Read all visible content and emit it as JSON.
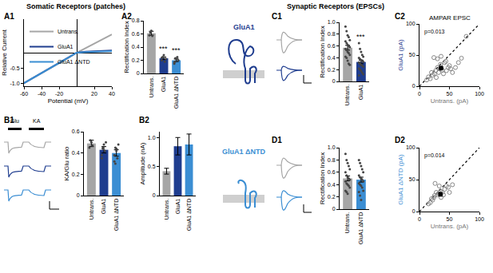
{
  "headers": [
    "Somatic Receptors (patches)",
    "Synaptic Receptors (EPSCs)"
  ],
  "constructs": [
    {
      "name": "GluA1",
      "color": "#1f3d8f"
    },
    {
      "name": "GluA1 ΔNTD",
      "color": "#3b8ed3"
    }
  ],
  "trace_labels": [
    "Glu",
    "KA"
  ],
  "chart_data": [
    {
      "panel": "A1",
      "type": "line",
      "xlabel": "Potential (mV)",
      "ylabel": "Relative Current",
      "x": [
        -60,
        -50,
        -40,
        -30,
        -20,
        -10,
        0,
        10,
        20,
        30,
        40
      ],
      "series": [
        {
          "name": "Untrans.",
          "color": "#a6a6a6",
          "values": [
            -1.0,
            -0.84,
            -0.68,
            -0.52,
            -0.36,
            -0.18,
            0,
            0.15,
            0.3,
            0.45,
            0.6
          ]
        },
        {
          "name": "GluA1",
          "color": "#1f3d8f",
          "values": [
            -1.0,
            -0.83,
            -0.66,
            -0.49,
            -0.32,
            -0.15,
            0,
            0.03,
            0.04,
            0.05,
            0.07
          ]
        },
        {
          "name": "GluA1 ΔNTD",
          "color": "#3b8ed3",
          "values": [
            -1.0,
            -0.84,
            -0.68,
            -0.51,
            -0.34,
            -0.17,
            0,
            0.02,
            0.03,
            0.04,
            0.05
          ]
        }
      ],
      "xlim": [
        -60,
        40
      ],
      "xticks": [
        -60,
        -40,
        -20,
        20,
        40
      ],
      "ylim": [
        -1.1,
        1.1
      ],
      "yticks": [
        {
          "value": -1,
          "label": "-1.0"
        },
        -0.5
      ],
      "legend": "upper left"
    },
    {
      "panel": "A2",
      "type": "bar",
      "ylabel": "Rectification Index",
      "categories": [
        "Untrans.",
        "GluA1",
        "GluA1 ΔNTD"
      ],
      "values": [
        0.61,
        0.23,
        0.2
      ],
      "errors": [
        0.03,
        0.02,
        0.02
      ],
      "colors": [
        "#a6a6a6",
        "#1f3d8f",
        "#3b8ed3"
      ],
      "points": [
        [
          0.58,
          0.62,
          0.65,
          0.57
        ],
        [
          0.2,
          0.25,
          0.28,
          0.18,
          0.22,
          0.24
        ],
        [
          0.15,
          0.18,
          0.22,
          0.25,
          0.2,
          0.17,
          0.23
        ]
      ],
      "ylim": [
        0,
        0.8
      ],
      "yticks": [
        0,
        0.2,
        0.4,
        0.6,
        0.8
      ],
      "annotations": [
        {
          "category": "GluA1",
          "text": "***"
        },
        {
          "category": "GluA1 ΔNTD",
          "text": "***"
        }
      ]
    },
    {
      "panel": "B1",
      "type": "bar",
      "ylabel": "KA/Glu ratio",
      "categories": [
        "Untrans.",
        "GluA1",
        "GluA1 ΔNTD"
      ],
      "values": [
        0.49,
        0.43,
        0.4
      ],
      "errors": [
        0.03,
        0.03,
        0.03
      ],
      "colors": [
        "#a6a6a6",
        "#1f3d8f",
        "#3b8ed3"
      ],
      "points": [
        [
          0.45,
          0.52,
          0.5,
          0.47
        ],
        [
          0.35,
          0.45,
          0.48,
          0.42,
          0.5,
          0.38,
          0.44
        ],
        [
          0.32,
          0.45,
          0.42,
          0.35,
          0.48,
          0.38,
          0.3,
          0.44
        ]
      ],
      "ylim": [
        0,
        0.6
      ],
      "yticks": [
        0,
        0.2,
        0.4,
        0.6
      ]
    },
    {
      "panel": "B2",
      "type": "bar",
      "ylabel": "Amplitude (nA)",
      "categories": [
        "Untrans.",
        "GluA1",
        "GluA1 ΔNTD"
      ],
      "values": [
        0.42,
        0.85,
        0.88
      ],
      "errors": [
        0.05,
        0.15,
        0.18
      ],
      "colors": [
        "#a6a6a6",
        "#1f3d8f",
        "#3b8ed3"
      ],
      "ylim": [
        0,
        1.1
      ],
      "yticks": [
        0,
        0.5,
        {
          "value": 1,
          "label": "1.0"
        }
      ]
    },
    {
      "panel": "C1",
      "type": "bar",
      "ylabel": "Rectification Index",
      "categories": [
        "Untrans.",
        "GluA1"
      ],
      "values": [
        0.57,
        0.33
      ],
      "errors": [
        0.04,
        0.03
      ],
      "colors": [
        "#a6a6a6",
        "#1f3d8f"
      ],
      "points": [
        [
          0.93,
          0.85,
          0.78,
          0.75,
          0.7,
          0.68,
          0.65,
          0.62,
          0.6,
          0.58,
          0.55,
          0.53,
          0.5,
          0.48,
          0.45,
          0.42,
          0.4,
          0.35,
          0.3,
          0.28
        ],
        [
          0.65,
          0.55,
          0.5,
          0.45,
          0.42,
          0.4,
          0.38,
          0.36,
          0.35,
          0.33,
          0.32,
          0.3,
          0.28,
          0.27,
          0.25,
          0.22,
          0.2,
          0.18,
          0.15,
          0.12,
          0.1,
          0.3
        ]
      ],
      "ylim": [
        0,
        1.0
      ],
      "yticks": [
        0,
        0.2,
        0.4,
        0.6,
        0.8,
        {
          "value": 1,
          "label": "1.0"
        }
      ],
      "annotations": [
        {
          "category": "GluA1",
          "text": "***"
        }
      ]
    },
    {
      "panel": "C2",
      "type": "scatter",
      "title": "AMPAR EPSC",
      "xlabel": "Untrans. (pA)",
      "ylabel": "GluA1 (pA)",
      "color": "#1f3d8f",
      "x": [
        12,
        15,
        18,
        20,
        22,
        24,
        25,
        27,
        28,
        30,
        30,
        32,
        34,
        35,
        36,
        38,
        40,
        42,
        44,
        45,
        48,
        50,
        52,
        55,
        60,
        65,
        70,
        78
      ],
      "y": [
        10,
        15,
        12,
        22,
        18,
        46,
        20,
        25,
        14,
        30,
        44,
        22,
        28,
        35,
        48,
        26,
        20,
        38,
        40,
        25,
        30,
        33,
        28,
        22,
        30,
        38,
        45,
        80
      ],
      "mean": {
        "x": 36,
        "y": 29,
        "x_error": 3,
        "y_error": 3
      },
      "xlim": [
        0,
        100
      ],
      "xticks": [
        0,
        50,
        100
      ],
      "ylim": [
        0,
        100
      ],
      "yticks": [
        0,
        50,
        100
      ],
      "line_style": "dotted",
      "annotations": [
        {
          "text": "p=0.013"
        }
      ]
    },
    {
      "panel": "D1",
      "type": "bar",
      "ylabel": "Rectification Index",
      "categories": [
        "Untrans.",
        "GluA1 ΔNTD"
      ],
      "values": [
        0.5,
        0.48
      ],
      "errors": [
        0.04,
        0.04
      ],
      "colors": [
        "#a6a6a6",
        "#3b8ed3"
      ],
      "points": [
        [
          0.9,
          0.8,
          0.75,
          0.7,
          0.65,
          0.6,
          0.55,
          0.52,
          0.5,
          0.48,
          0.45,
          0.42,
          0.4,
          0.38,
          0.35,
          0.3,
          0.28,
          0.25
        ],
        [
          0.8,
          0.75,
          0.7,
          0.65,
          0.6,
          0.55,
          0.52,
          0.5,
          0.48,
          0.45,
          0.42,
          0.4,
          0.38,
          0.35,
          0.3,
          0.28,
          0.22,
          0.15
        ]
      ],
      "ylim": [
        0,
        1.0
      ],
      "yticks": [
        0,
        0.2,
        0.4,
        0.6,
        0.8,
        {
          "value": 1,
          "label": "1.0"
        }
      ]
    },
    {
      "panel": "D2",
      "type": "scatter",
      "xlabel": "Untrans. (pA)",
      "ylabel": "GluA1 ΔNTD (pA)",
      "color": "#3b8ed3",
      "x": [
        15,
        18,
        20,
        22,
        24,
        25,
        26,
        28,
        30,
        32,
        33,
        35,
        36,
        38,
        40,
        42,
        45,
        48,
        50,
        55
      ],
      "y": [
        12,
        14,
        20,
        18,
        22,
        25,
        44,
        30,
        26,
        28,
        40,
        32,
        22,
        30,
        26,
        35,
        40,
        38,
        30,
        42
      ],
      "mean": {
        "x": 35,
        "y": 27,
        "x_error": 3,
        "y_error": 3
      },
      "xlim": [
        0,
        100
      ],
      "xticks": [
        0,
        50,
        100
      ],
      "ylim": [
        0,
        100
      ],
      "yticks": [
        0,
        50,
        100
      ],
      "line_style": "dotted",
      "annotations": [
        {
          "text": "p=0.014"
        }
      ]
    }
  ]
}
